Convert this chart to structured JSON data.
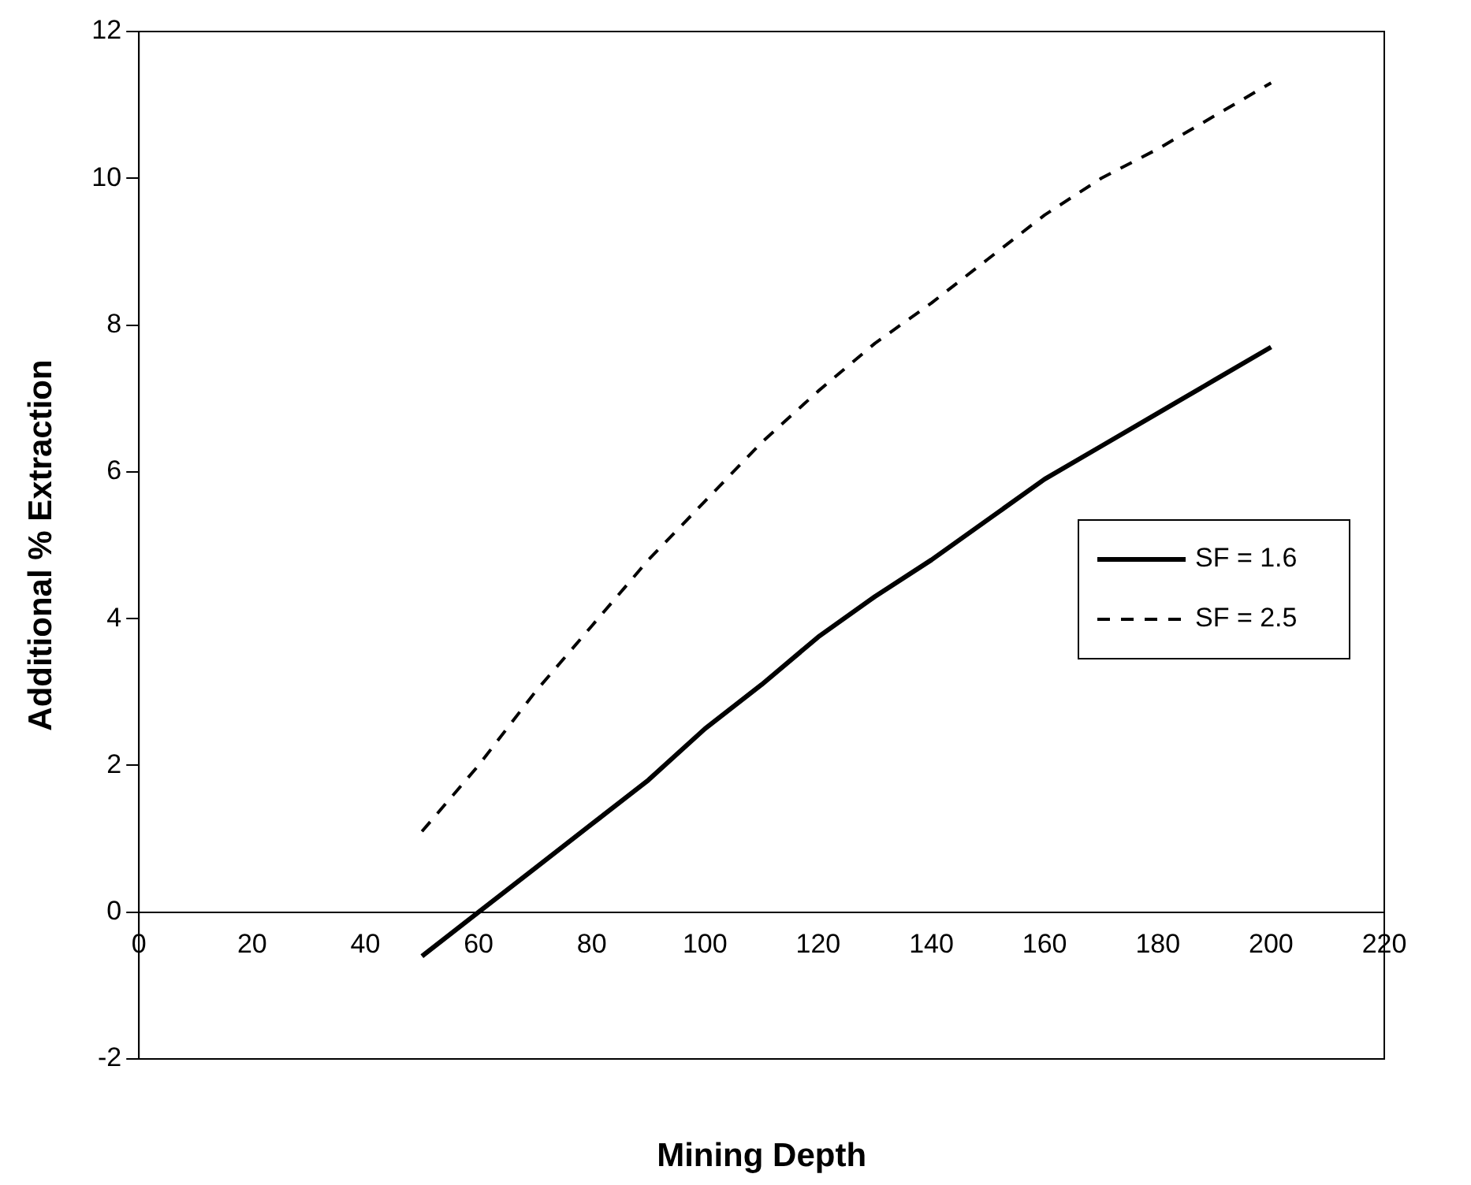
{
  "chart_data": {
    "type": "line",
    "xlabel": "Mining Depth",
    "ylabel": "Additional % Extraction",
    "x": [
      50,
      60,
      70,
      80,
      90,
      100,
      110,
      120,
      130,
      140,
      150,
      160,
      170,
      180,
      190,
      200
    ],
    "series": [
      {
        "name": "SF = 1.6",
        "color": "#000000",
        "line_style": "solid",
        "values": [
          -0.6,
          0,
          0.6,
          1.2,
          1.8,
          2.5,
          3.1,
          3.75,
          4.3,
          4.8,
          5.35,
          5.9,
          6.35,
          6.8,
          7.25,
          7.7
        ]
      },
      {
        "name": "SF = 2.5",
        "color": "#000000",
        "line_style": "dashed",
        "values": [
          1.1,
          2.0,
          3.0,
          3.9,
          4.8,
          5.6,
          6.4,
          7.1,
          7.75,
          8.3,
          8.9,
          9.5,
          10.0,
          10.4,
          10.85,
          11.3
        ]
      }
    ],
    "xlim": [
      0,
      220
    ],
    "xticks": [
      0,
      20,
      40,
      60,
      80,
      100,
      120,
      140,
      160,
      180,
      200,
      220
    ],
    "ylim": [
      -2,
      12
    ],
    "yticks": [
      -2,
      0,
      2,
      4,
      6,
      8,
      10,
      12
    ],
    "grid": false,
    "legend": "right",
    "marker": "none"
  }
}
